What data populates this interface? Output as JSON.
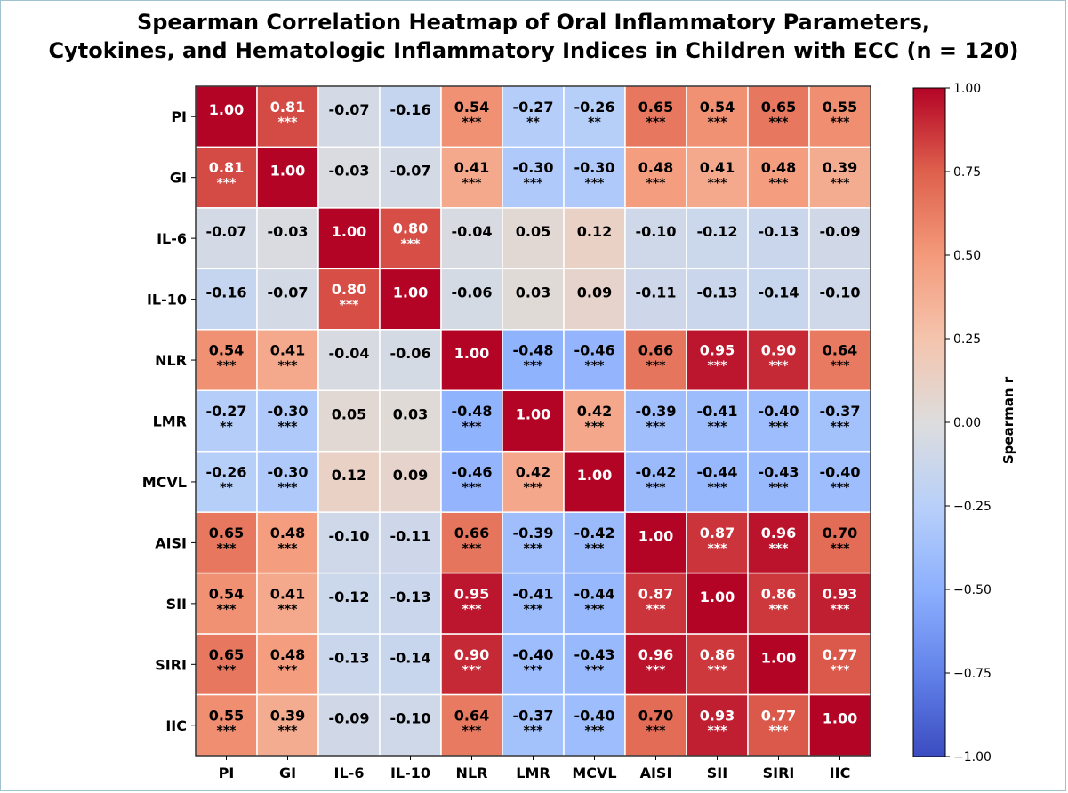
{
  "chart_data": {
    "type": "heatmap",
    "title": [
      "Spearman Correlation Heatmap of Oral Inflammatory Parameters,",
      "Cytokines, and Hematologic Inflammatory Indices in Children with ECC (n = 120)"
    ],
    "variables": [
      "PI",
      "GI",
      "IL-6",
      "IL-10",
      "NLR",
      "LMR",
      "MCVL",
      "AISI",
      "SII",
      "SIRI",
      "IIC"
    ],
    "values": [
      [
        1.0,
        0.81,
        -0.07,
        -0.16,
        0.54,
        -0.27,
        -0.26,
        0.65,
        0.54,
        0.65,
        0.55
      ],
      [
        0.81,
        1.0,
        -0.03,
        -0.07,
        0.41,
        -0.3,
        -0.3,
        0.48,
        0.41,
        0.48,
        0.39
      ],
      [
        -0.07,
        -0.03,
        1.0,
        0.8,
        -0.04,
        0.05,
        0.12,
        -0.1,
        -0.12,
        -0.13,
        -0.09
      ],
      [
        -0.16,
        -0.07,
        0.8,
        1.0,
        -0.06,
        0.03,
        0.09,
        -0.11,
        -0.13,
        -0.14,
        -0.1
      ],
      [
        0.54,
        0.41,
        -0.04,
        -0.06,
        1.0,
        -0.48,
        -0.46,
        0.66,
        0.95,
        0.9,
        0.64
      ],
      [
        -0.27,
        -0.3,
        0.05,
        0.03,
        -0.48,
        1.0,
        0.42,
        -0.39,
        -0.41,
        -0.4,
        -0.37
      ],
      [
        -0.26,
        -0.3,
        0.12,
        0.09,
        -0.46,
        0.42,
        1.0,
        -0.42,
        -0.44,
        -0.43,
        -0.4
      ],
      [
        0.65,
        0.48,
        -0.1,
        -0.11,
        0.66,
        -0.39,
        -0.42,
        1.0,
        0.87,
        0.96,
        0.7
      ],
      [
        0.54,
        0.41,
        -0.12,
        -0.13,
        0.95,
        -0.41,
        -0.44,
        0.87,
        1.0,
        0.86,
        0.93
      ],
      [
        0.65,
        0.48,
        -0.13,
        -0.14,
        0.9,
        -0.4,
        -0.43,
        0.96,
        0.86,
        1.0,
        0.77
      ],
      [
        0.55,
        0.39,
        -0.09,
        -0.1,
        0.64,
        -0.37,
        -0.4,
        0.7,
        0.93,
        0.77,
        1.0
      ]
    ],
    "significance": [
      [
        "",
        "***",
        "",
        "",
        "***",
        "**",
        "**",
        "***",
        "***",
        "***",
        "***"
      ],
      [
        "***",
        "",
        "",
        "",
        "***",
        "***",
        "***",
        "***",
        "***",
        "***",
        "***"
      ],
      [
        "",
        "",
        "",
        "***",
        "",
        "",
        "",
        "",
        "",
        "",
        ""
      ],
      [
        "",
        "",
        "***",
        "",
        "",
        "",
        "",
        "",
        "",
        "",
        ""
      ],
      [
        "***",
        "***",
        "",
        "",
        "",
        "***",
        "***",
        "***",
        "***",
        "***",
        "***"
      ],
      [
        "**",
        "***",
        "",
        "",
        "***",
        "",
        "***",
        "***",
        "***",
        "***",
        "***"
      ],
      [
        "**",
        "***",
        "",
        "",
        "***",
        "***",
        "",
        "***",
        "***",
        "***",
        "***"
      ],
      [
        "***",
        "***",
        "",
        "",
        "***",
        "***",
        "***",
        "",
        "***",
        "***",
        "***"
      ],
      [
        "***",
        "***",
        "",
        "",
        "***",
        "***",
        "***",
        "***",
        "",
        "***",
        "***"
      ],
      [
        "***",
        "***",
        "",
        "",
        "***",
        "***",
        "***",
        "***",
        "***",
        "",
        "***"
      ],
      [
        "***",
        "***",
        "",
        "",
        "***",
        "***",
        "***",
        "***",
        "***",
        "***",
        ""
      ]
    ],
    "colorbar": {
      "label": "Spearman r",
      "range": [
        -1.0,
        1.0
      ],
      "ticks": [
        "1.00",
        "0.75",
        "0.50",
        "0.25",
        "0.00",
        "−0.25",
        "−0.50",
        "−0.75",
        "−1.00"
      ],
      "colormap": "coolwarm"
    }
  }
}
